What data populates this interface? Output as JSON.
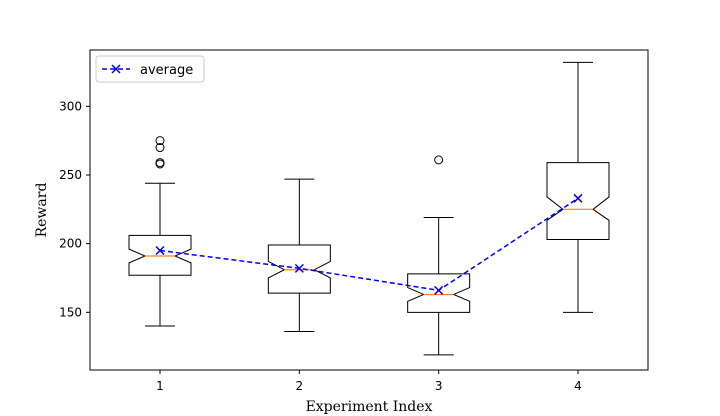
{
  "chart_data": {
    "type": "boxplot",
    "title": "",
    "xlabel": "Experiment Index",
    "ylabel": "Reward",
    "categories": [
      "1",
      "2",
      "3",
      "4"
    ],
    "ylim": [
      108,
      341
    ],
    "yticks": [
      150,
      200,
      250,
      300
    ],
    "notched": true,
    "grid": false,
    "legend_position": "top-left",
    "boxes": [
      {
        "whisker_low": 140,
        "q1": 177,
        "median": 191,
        "q3": 206,
        "whisker_high": 244,
        "notch_low": 186,
        "notch_high": 196,
        "mean": 195,
        "outliers": [
          258,
          259,
          270,
          275
        ]
      },
      {
        "whisker_low": 136,
        "q1": 164,
        "median": 181,
        "q3": 199,
        "whisker_high": 247,
        "notch_low": 175,
        "notch_high": 187,
        "mean": 182,
        "outliers": []
      },
      {
        "whisker_low": 119,
        "q1": 150,
        "median": 163,
        "q3": 178,
        "whisker_high": 219,
        "notch_low": 158,
        "notch_high": 168,
        "mean": 166,
        "outliers": [
          261
        ]
      },
      {
        "whisker_low": 150,
        "q1": 203,
        "median": 225,
        "q3": 259,
        "whisker_high": 332,
        "notch_low": 217,
        "notch_high": 234,
        "mean": 233,
        "outliers": []
      }
    ],
    "series": [
      {
        "name": "average",
        "values": [
          195,
          182,
          166,
          233
        ],
        "style": "dashed",
        "marker": "x",
        "color": "#0000ff"
      }
    ],
    "colors": {
      "box": "#000000",
      "median": "#ff7f0e",
      "average": "#0000ff"
    }
  }
}
